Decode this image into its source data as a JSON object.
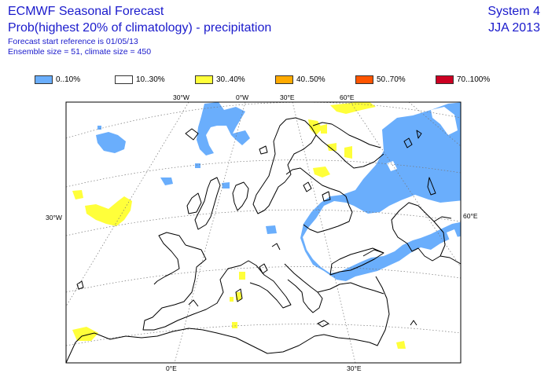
{
  "header": {
    "title": "ECMWF Seasonal Forecast",
    "subtitle": "Prob(highest 20% of climatology) - precipitation",
    "start_ref": "Forecast start reference is 01/05/13",
    "ensemble": "Ensemble size = 51, climate size = 450",
    "system": "System 4",
    "period": "JJA 2013"
  },
  "legend": [
    {
      "label": "0..10%",
      "color": "#6aaefc"
    },
    {
      "label": "10..30%",
      "color": "#ffffff"
    },
    {
      "label": "30..40%",
      "color": "#ffff3a"
    },
    {
      "label": "40..50%",
      "color": "#ffaa00"
    },
    {
      "label": "50..70%",
      "color": "#ff5500"
    },
    {
      "label": "70..100%",
      "color": "#cc0022"
    }
  ],
  "grid_labels": {
    "top_30w": "30°W",
    "top_0": "0°W",
    "top_30e": "30°E",
    "top_60e": "60°E",
    "left_30w": "30°W",
    "right_60e": "60°E",
    "bottom_0": "0°E",
    "bottom_30e": "30°E"
  }
}
